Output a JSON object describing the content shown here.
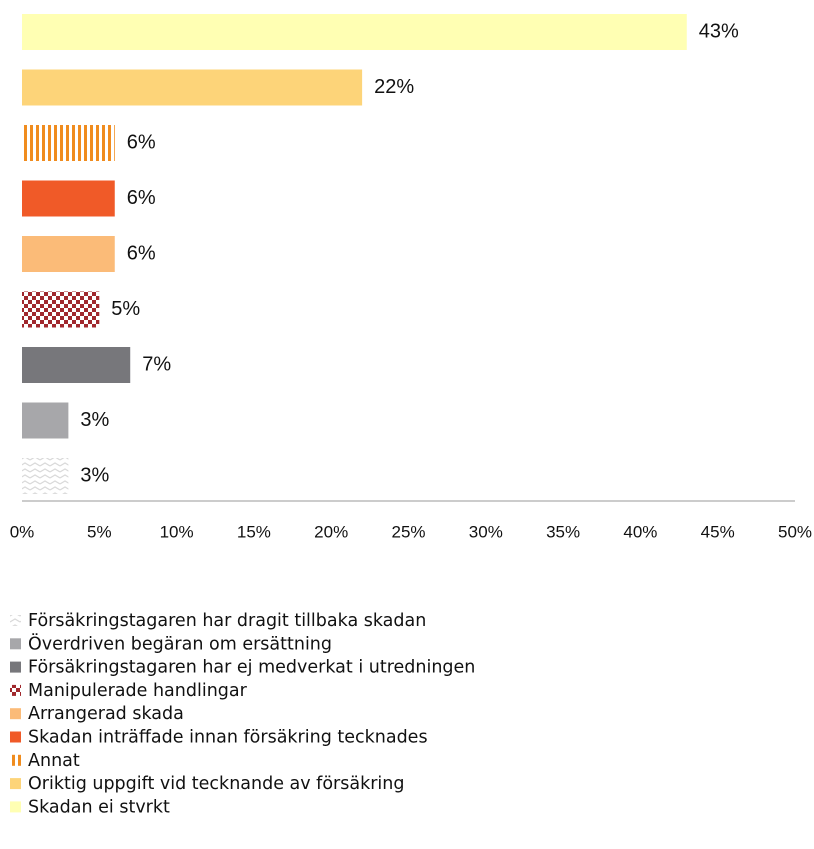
{
  "chart_data": {
    "type": "barh",
    "categories": [
      "Försäkringstagaren har dragit tillbaka skadan",
      "Överdriven begäran om ersättning",
      "Försäkringstagaren har ej medverkat i utredningen",
      "Manipulerade handlingar",
      "Arrangerad skada",
      "Skadan inträffade innan försäkring tecknades",
      "Annat",
      "Oriktig uppgift vid tecknande av försäkring",
      "Skadan ei stvrkt"
    ],
    "values": [
      3,
      3,
      7,
      5,
      6,
      6,
      6,
      22,
      43
    ],
    "value_labels": [
      "3%",
      "3%",
      "7%",
      "5%",
      "6%",
      "6%",
      "6%",
      "22%",
      "43%"
    ],
    "colors": [
      "#d9d9d9",
      "#a7a7aa",
      "#77777b",
      "#a0282d",
      "#fbbb78",
      "#f05a28",
      "#f08c1e",
      "#fdd479",
      "#ffffb3"
    ],
    "patterns": [
      "zigzag",
      "solid",
      "solid",
      "checker",
      "solid",
      "solid",
      "vertical-stripes",
      "solid",
      "solid"
    ],
    "xlim": [
      0,
      50
    ],
    "xticks": [
      {
        "value": 0,
        "label": "0%"
      },
      {
        "value": 5,
        "label": "5%"
      },
      {
        "value": 10,
        "label": "10%"
      },
      {
        "value": 15,
        "label": "15%"
      },
      {
        "value": 20,
        "label": "20%"
      },
      {
        "value": 25,
        "label": "25%"
      },
      {
        "value": 30,
        "label": "30%"
      },
      {
        "value": 35,
        "label": "35%"
      },
      {
        "value": 40,
        "label": "40%"
      },
      {
        "value": 45,
        "label": "45%"
      },
      {
        "value": 50,
        "label": "50%"
      }
    ],
    "legend": "bottom"
  }
}
